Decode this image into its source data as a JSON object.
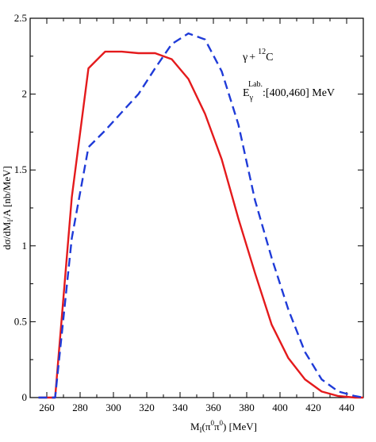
{
  "chart_data": {
    "type": "line",
    "xlabel": {
      "main": "M",
      "sub": "I",
      "open": "(π",
      "sup1": "0",
      "mid": "π",
      "sup2": "0",
      "close": ") [MeV]"
    },
    "ylabel": {
      "pre": "dσ/dM",
      "sub": "I",
      "post": "/A  [nb/MeV]"
    },
    "xlim": [
      250,
      450
    ],
    "ylim": [
      0,
      2.5
    ],
    "xticks": [
      260,
      280,
      300,
      320,
      340,
      360,
      380,
      400,
      420,
      440
    ],
    "yticks": [
      0,
      0.5,
      1,
      1.5,
      2,
      2.5
    ],
    "ytick_labels": [
      "0",
      "0.5",
      "1",
      "1.5",
      "2",
      "2.5"
    ],
    "grid": false,
    "annotations": {
      "reaction": {
        "gamma": "γ",
        "plus": "+",
        "mass": "12",
        "nucleus": "C"
      },
      "energy": {
        "E": "E",
        "sub": "γ",
        "sup": "Lab.",
        "range": ":[400,460] MeV"
      }
    },
    "series": [
      {
        "color": "#e41a1c",
        "style": "solid",
        "x": [
          255,
          265,
          275,
          285,
          295,
          305,
          315,
          325,
          335,
          345,
          355,
          365,
          375,
          385,
          395,
          405,
          415,
          425,
          435,
          445,
          450
        ],
        "y": [
          0,
          0,
          1.32,
          2.17,
          2.28,
          2.28,
          2.27,
          2.27,
          2.23,
          2.1,
          1.87,
          1.57,
          1.18,
          0.82,
          0.48,
          0.26,
          0.12,
          0.04,
          0.01,
          0,
          0
        ]
      },
      {
        "color": "#1f3bd8",
        "style": "dashed",
        "x": [
          255,
          265,
          275,
          285,
          295,
          305,
          315,
          325,
          335,
          345,
          355,
          365,
          375,
          385,
          395,
          405,
          415,
          425,
          435,
          445,
          450
        ],
        "y": [
          0,
          0,
          1.05,
          1.65,
          1.76,
          1.88,
          2.0,
          2.17,
          2.33,
          2.4,
          2.36,
          2.15,
          1.8,
          1.3,
          0.92,
          0.58,
          0.3,
          0.12,
          0.04,
          0.01,
          0
        ]
      }
    ]
  }
}
